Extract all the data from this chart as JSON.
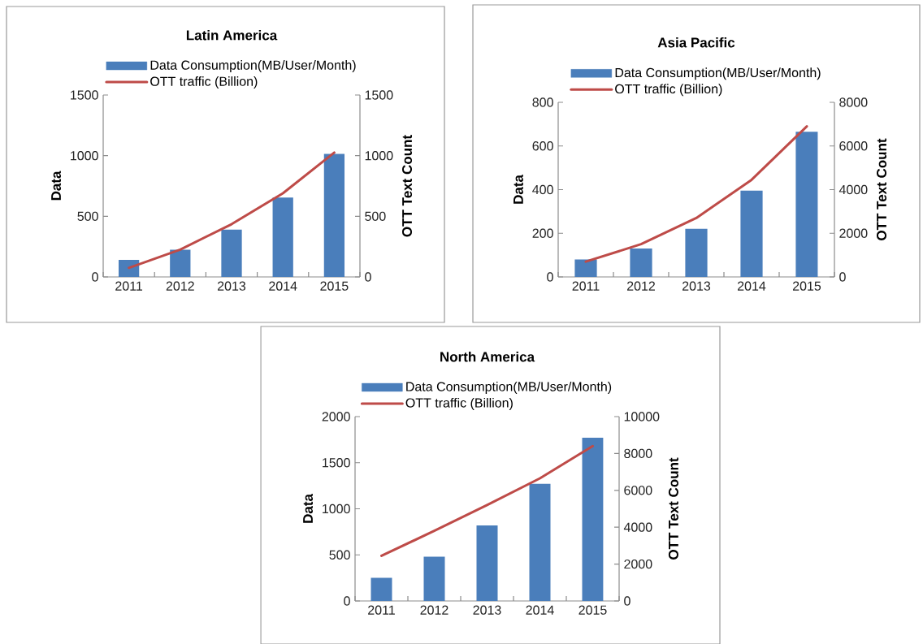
{
  "chart_data": [
    {
      "type": "bar",
      "title": "Latin America",
      "categories": [
        "2011",
        "2012",
        "2013",
        "2014",
        "2015"
      ],
      "ylabel": "Data",
      "y2label": "OTT Text Count",
      "ylim": [
        0,
        1500
      ],
      "yticks": [
        0,
        500,
        1000,
        1500
      ],
      "y2lim": [
        0,
        1500
      ],
      "y2ticks": [
        0,
        500,
        1000,
        1500
      ],
      "legend": "top",
      "series": [
        {
          "name": "Data Consumption(MB/User/Month)",
          "color": "#4a7ebb",
          "values": [
            140,
            225,
            390,
            655,
            1015
          ]
        },
        {
          "name": "OTT traffic (Billion)",
          "type": "line",
          "axis": "y2",
          "color": "#be4b48",
          "values": [
            75,
            225,
            435,
            690,
            1025
          ]
        }
      ]
    },
    {
      "type": "bar",
      "title": "Asia Pacific",
      "categories": [
        "2011",
        "2012",
        "2013",
        "2014",
        "2015"
      ],
      "ylabel": "Data",
      "y2label": "OTT Text Count",
      "ylim": [
        0,
        800
      ],
      "yticks": [
        0,
        200,
        400,
        600,
        800
      ],
      "y2lim": [
        0,
        8000
      ],
      "y2ticks": [
        0,
        2000,
        4000,
        6000,
        8000
      ],
      "legend": "top",
      "series": [
        {
          "name": "Data Consumption(MB/User/Month)",
          "color": "#4a7ebb",
          "values": [
            80,
            130,
            220,
            395,
            665
          ]
        },
        {
          "name": "OTT traffic (Billion)",
          "type": "line",
          "axis": "y2",
          "color": "#be4b48",
          "values": [
            700,
            1500,
            2700,
            4450,
            6900
          ]
        }
      ]
    },
    {
      "type": "bar",
      "title": "North America",
      "categories": [
        "2011",
        "2012",
        "2013",
        "2014",
        "2015"
      ],
      "ylabel": "Data",
      "y2label": "OTT Text Count",
      "ylim": [
        0,
        2000
      ],
      "yticks": [
        0,
        500,
        1000,
        1500,
        2000
      ],
      "y2lim": [
        0,
        10000
      ],
      "y2ticks": [
        0,
        2000,
        4000,
        6000,
        8000,
        10000
      ],
      "legend": "top",
      "series": [
        {
          "name": "Data Consumption(MB/User/Month)",
          "color": "#4a7ebb",
          "values": [
            250,
            480,
            820,
            1270,
            1770
          ]
        },
        {
          "name": "OTT traffic (Billion)",
          "type": "line",
          "axis": "y2",
          "color": "#be4b48",
          "values": [
            2450,
            3800,
            5200,
            6650,
            8400
          ]
        }
      ]
    }
  ]
}
